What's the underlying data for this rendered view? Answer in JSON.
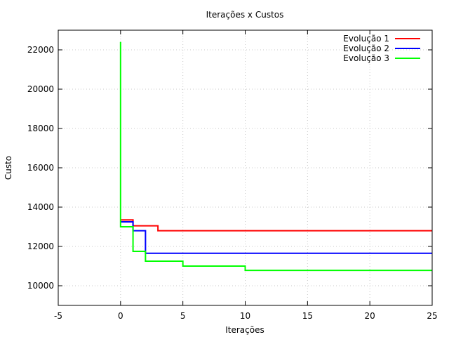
{
  "chart_data": {
    "type": "line",
    "title": "Iterações x Custos",
    "xlabel": "Iterações",
    "ylabel": "Custo",
    "xlim": [
      -5,
      25
    ],
    "ylim": [
      9000,
      23000
    ],
    "xticks": [
      "-5",
      "0",
      "5",
      "10",
      "15",
      "20",
      "25"
    ],
    "yticks": [
      "10000",
      "12000",
      "14000",
      "16000",
      "18000",
      "20000",
      "22000"
    ],
    "grid": true,
    "legend_position": "top-right",
    "step": true,
    "series": [
      {
        "name": "Evolução 1",
        "color": "#ff0000",
        "x": [
          0,
          1,
          3,
          25
        ],
        "y": [
          13350,
          13050,
          12800,
          12800
        ]
      },
      {
        "name": "Evolução 2",
        "color": "#0000ff",
        "x": [
          0,
          1,
          2,
          25
        ],
        "y": [
          13250,
          12800,
          11650,
          11650
        ]
      },
      {
        "name": "Evolução 3",
        "color": "#00ff00",
        "x": [
          0,
          0,
          1,
          2,
          5,
          10,
          25
        ],
        "y": [
          22400,
          13000,
          11750,
          11250,
          11000,
          10780,
          10780
        ]
      }
    ]
  }
}
